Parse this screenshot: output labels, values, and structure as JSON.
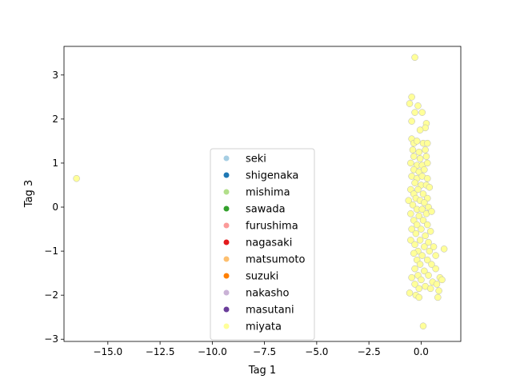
{
  "chart_data": {
    "type": "scatter",
    "title": "",
    "xlabel": "Tag 1",
    "ylabel": "Tag 3",
    "xlim": [
      -17.1,
      1.9
    ],
    "ylim": [
      -3.05,
      3.65
    ],
    "xticks": [
      {
        "value": -15.0,
        "label": "−15.0"
      },
      {
        "value": -12.5,
        "label": "−12.5"
      },
      {
        "value": -10.0,
        "label": "−10.0"
      },
      {
        "value": -7.5,
        "label": "−7.5"
      },
      {
        "value": -5.0,
        "label": "−5.0"
      },
      {
        "value": -2.5,
        "label": "−2.5"
      },
      {
        "value": 0.0,
        "label": "0.0"
      }
    ],
    "yticks": [
      {
        "value": -3,
        "label": "−3"
      },
      {
        "value": -2,
        "label": "−2"
      },
      {
        "value": -1,
        "label": "−1"
      },
      {
        "value": 0,
        "label": "0"
      },
      {
        "value": 1,
        "label": "1"
      },
      {
        "value": 2,
        "label": "2"
      },
      {
        "value": 3,
        "label": "3"
      }
    ],
    "grid": false,
    "legend_position": "lower-center",
    "series": [
      {
        "name": "seki",
        "color": "#a6cee3",
        "points": []
      },
      {
        "name": "shigenaka",
        "color": "#1f78b4",
        "points": []
      },
      {
        "name": "mishima",
        "color": "#b2df8a",
        "points": []
      },
      {
        "name": "sawada",
        "color": "#33a02c",
        "points": []
      },
      {
        "name": "furushima",
        "color": "#fb9a99",
        "points": []
      },
      {
        "name": "nagasaki",
        "color": "#e31a1c",
        "points": []
      },
      {
        "name": "matsumoto",
        "color": "#fdbf6f",
        "points": []
      },
      {
        "name": "suzuki",
        "color": "#ff7f00",
        "points": []
      },
      {
        "name": "nakasho",
        "color": "#cab2d6",
        "points": []
      },
      {
        "name": "masutani",
        "color": "#6a3d9a",
        "points": []
      },
      {
        "name": "miyata",
        "color": "#ffff99",
        "points": [
          [
            -16.5,
            0.65
          ],
          [
            -0.3,
            3.4
          ],
          [
            -0.45,
            2.5
          ],
          [
            -0.55,
            2.35
          ],
          [
            -0.15,
            2.3
          ],
          [
            -0.3,
            2.15
          ],
          [
            0.05,
            2.15
          ],
          [
            -0.45,
            1.95
          ],
          [
            0.25,
            1.9
          ],
          [
            0.2,
            1.8
          ],
          [
            -0.05,
            1.75
          ],
          [
            -0.45,
            1.55
          ],
          [
            -0.35,
            1.45
          ],
          [
            -0.2,
            1.5
          ],
          [
            0.1,
            1.45
          ],
          [
            0.3,
            1.45
          ],
          [
            -0.4,
            1.3
          ],
          [
            -0.1,
            1.25
          ],
          [
            0.2,
            1.3
          ],
          [
            -0.35,
            1.15
          ],
          [
            -0.05,
            1.1
          ],
          [
            0.25,
            1.15
          ],
          [
            -0.5,
            1.0
          ],
          [
            -0.2,
            0.95
          ],
          [
            0.05,
            0.95
          ],
          [
            0.3,
            1.0
          ],
          [
            -0.35,
            0.85
          ],
          [
            -0.1,
            0.8
          ],
          [
            0.15,
            0.85
          ],
          [
            -0.45,
            0.7
          ],
          [
            -0.2,
            0.65
          ],
          [
            0.05,
            0.7
          ],
          [
            0.3,
            0.65
          ],
          [
            -0.3,
            0.55
          ],
          [
            0.0,
            0.5
          ],
          [
            0.25,
            0.5
          ],
          [
            -0.5,
            0.4
          ],
          [
            -0.15,
            0.4
          ],
          [
            0.4,
            0.45
          ],
          [
            -0.35,
            0.3
          ],
          [
            0.1,
            0.3
          ],
          [
            -0.25,
            0.2
          ],
          [
            0.3,
            0.2
          ],
          [
            -0.6,
            0.15
          ],
          [
            -0.05,
            0.15
          ],
          [
            0.15,
            0.1
          ],
          [
            -0.4,
            0.05
          ],
          [
            0.35,
            0.0
          ],
          [
            -0.2,
            -0.05
          ],
          [
            0.05,
            -0.05
          ],
          [
            -0.5,
            -0.15
          ],
          [
            0.25,
            -0.15
          ],
          [
            -0.1,
            -0.2
          ],
          [
            0.5,
            -0.1
          ],
          [
            -0.35,
            -0.3
          ],
          [
            0.1,
            -0.3
          ],
          [
            -0.2,
            -0.4
          ],
          [
            0.3,
            -0.4
          ],
          [
            -0.45,
            -0.5
          ],
          [
            0.0,
            -0.5
          ],
          [
            0.45,
            -0.55
          ],
          [
            -0.25,
            -0.6
          ],
          [
            0.2,
            -0.65
          ],
          [
            -0.5,
            -0.75
          ],
          [
            -0.05,
            -0.75
          ],
          [
            0.35,
            -0.8
          ],
          [
            -0.3,
            -0.85
          ],
          [
            0.15,
            -0.9
          ],
          [
            0.6,
            -0.9
          ],
          [
            -0.15,
            -1.0
          ],
          [
            0.4,
            -1.0
          ],
          [
            1.1,
            -0.95
          ],
          [
            -0.35,
            -1.05
          ],
          [
            0.05,
            -1.1
          ],
          [
            0.7,
            -1.1
          ],
          [
            -0.2,
            -1.2
          ],
          [
            0.3,
            -1.2
          ],
          [
            -0.05,
            -1.3
          ],
          [
            0.5,
            -1.3
          ],
          [
            -0.3,
            -1.4
          ],
          [
            0.15,
            -1.45
          ],
          [
            0.7,
            -1.4
          ],
          [
            -0.15,
            -1.55
          ],
          [
            0.35,
            -1.55
          ],
          [
            -0.45,
            -1.6
          ],
          [
            0.9,
            -1.6
          ],
          [
            0.0,
            -1.65
          ],
          [
            0.55,
            -1.7
          ],
          [
            1.0,
            -1.65
          ],
          [
            -0.3,
            -1.75
          ],
          [
            0.2,
            -1.8
          ],
          [
            0.75,
            -1.75
          ],
          [
            -0.1,
            -1.85
          ],
          [
            0.45,
            -1.85
          ],
          [
            0.85,
            -1.9
          ],
          [
            -0.55,
            -1.95
          ],
          [
            -0.25,
            -2.0
          ],
          [
            0.8,
            -2.05
          ],
          [
            -0.1,
            -2.05
          ],
          [
            0.1,
            -2.7
          ]
        ]
      }
    ]
  }
}
